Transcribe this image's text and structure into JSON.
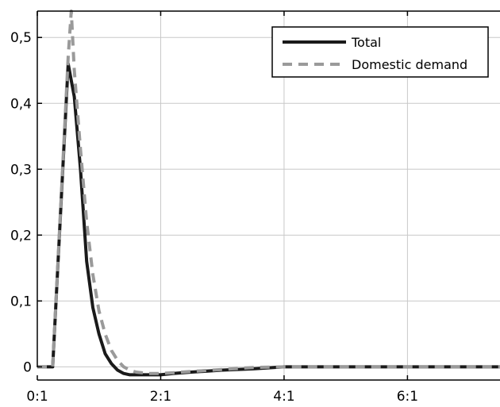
{
  "chart_data": {
    "type": "line",
    "title": "",
    "xlabel": "",
    "ylabel": "",
    "xlim": [
      0,
      7.5
    ],
    "ylim": [
      -0.02,
      0.54
    ],
    "grid": true,
    "legend_position": "top-right",
    "x_ticks": [
      {
        "value": 0,
        "label": "0:1"
      },
      {
        "value": 2,
        "label": "2:1"
      },
      {
        "value": 4,
        "label": "4:1"
      },
      {
        "value": 6,
        "label": "6:1"
      }
    ],
    "y_ticks": [
      {
        "value": 0,
        "label": "0"
      },
      {
        "value": 0.1,
        "label": "0,1"
      },
      {
        "value": 0.2,
        "label": "0,2"
      },
      {
        "value": 0.3,
        "label": "0,3"
      },
      {
        "value": 0.4,
        "label": "0,4"
      },
      {
        "value": 0.5,
        "label": "0,5"
      }
    ],
    "series": [
      {
        "name": "Total",
        "color": "#1a1a1a",
        "dash": "solid",
        "x": [
          0,
          0.25,
          0.5,
          0.6,
          0.7,
          0.8,
          0.9,
          1.0,
          1.1,
          1.2,
          1.3,
          1.4,
          1.5,
          1.6,
          1.8,
          2.0,
          2.2,
          2.5,
          3.0,
          3.5,
          4.0,
          4.5,
          5.0,
          5.5,
          6.0,
          6.5,
          7.0,
          7.5
        ],
        "y": [
          0,
          0,
          0.46,
          0.41,
          0.3,
          0.16,
          0.09,
          0.05,
          0.02,
          0.005,
          -0.005,
          -0.01,
          -0.012,
          -0.012,
          -0.012,
          -0.012,
          -0.01,
          -0.008,
          -0.005,
          -0.003,
          0.0,
          0.0,
          0.0,
          0.0,
          0.0,
          0.0,
          0.0,
          0.0
        ]
      },
      {
        "name": "Domestic demand",
        "color": "#9a9a9a",
        "dash": "dashed",
        "x": [
          0,
          0.25,
          0.5,
          0.55,
          0.6,
          0.7,
          0.8,
          0.9,
          1.0,
          1.1,
          1.2,
          1.3,
          1.4,
          1.5,
          1.6,
          1.8,
          2.0,
          2.2,
          2.5,
          3.0,
          3.5,
          4.0,
          4.5,
          5.0,
          5.5,
          6.0,
          6.5,
          7.0,
          7.5
        ],
        "y": [
          0,
          0,
          0.47,
          0.54,
          0.45,
          0.33,
          0.22,
          0.14,
          0.085,
          0.05,
          0.025,
          0.01,
          0.0,
          -0.005,
          -0.008,
          -0.01,
          -0.01,
          -0.009,
          -0.007,
          -0.004,
          -0.001,
          0.0,
          0.0,
          0.0,
          0.0,
          0.0,
          0.0,
          0.0,
          0.0
        ]
      }
    ]
  }
}
